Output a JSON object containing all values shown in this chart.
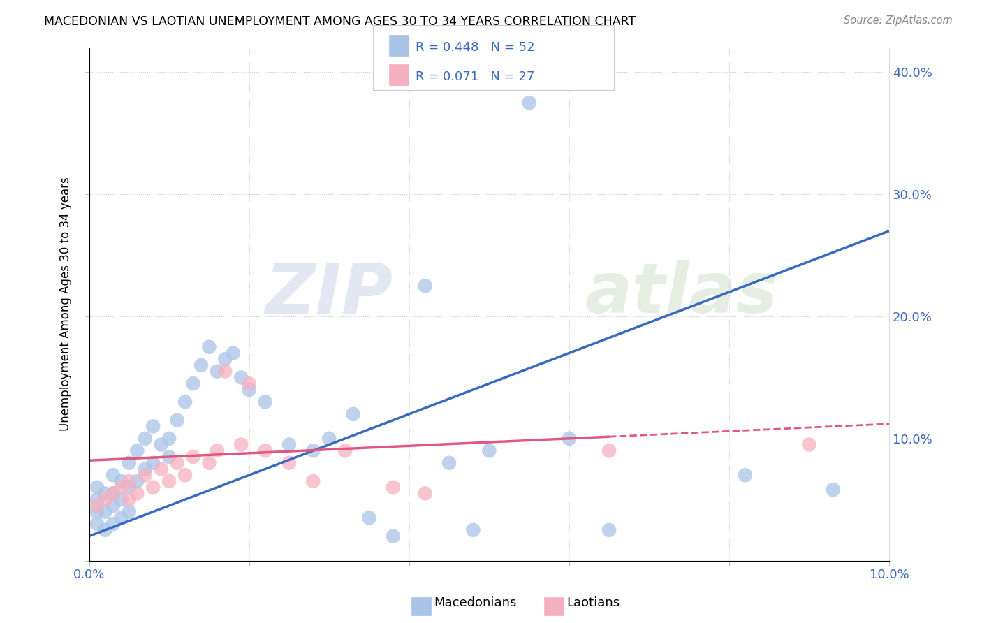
{
  "title": "MACEDONIAN VS LAOTIAN UNEMPLOYMENT AMONG AGES 30 TO 34 YEARS CORRELATION CHART",
  "source": "Source: ZipAtlas.com",
  "ylabel": "Unemployment Among Ages 30 to 34 years",
  "xlim": [
    0.0,
    0.1
  ],
  "ylim": [
    0.0,
    0.42
  ],
  "x_ticks": [
    0.0,
    0.02,
    0.04,
    0.06,
    0.08,
    0.1
  ],
  "x_tick_labels": [
    "0.0%",
    "",
    "",
    "",
    "",
    "10.0%"
  ],
  "y_ticks": [
    0.0,
    0.1,
    0.2,
    0.3,
    0.4
  ],
  "y_tick_labels": [
    "",
    "10.0%",
    "20.0%",
    "30.0%",
    "40.0%"
  ],
  "mac_color": "#aac4e8",
  "lao_color": "#f5b0c0",
  "mac_line_color": "#3a6abf",
  "lao_line_color": "#e05880",
  "watermark_zip": "ZIP",
  "watermark_atlas": "atlas",
  "mac_x": [
    0.001,
    0.001,
    0.001,
    0.001,
    0.002,
    0.002,
    0.002,
    0.003,
    0.003,
    0.003,
    0.003,
    0.004,
    0.004,
    0.004,
    0.005,
    0.005,
    0.005,
    0.006,
    0.006,
    0.007,
    0.007,
    0.008,
    0.008,
    0.009,
    0.01,
    0.01,
    0.011,
    0.012,
    0.013,
    0.014,
    0.015,
    0.016,
    0.017,
    0.018,
    0.019,
    0.02,
    0.022,
    0.025,
    0.028,
    0.03,
    0.033,
    0.035,
    0.038,
    0.042,
    0.045,
    0.048,
    0.05,
    0.055,
    0.06,
    0.065,
    0.082,
    0.093
  ],
  "mac_y": [
    0.03,
    0.04,
    0.05,
    0.06,
    0.025,
    0.04,
    0.055,
    0.03,
    0.045,
    0.055,
    0.07,
    0.035,
    0.05,
    0.065,
    0.04,
    0.06,
    0.08,
    0.065,
    0.09,
    0.075,
    0.1,
    0.08,
    0.11,
    0.095,
    0.085,
    0.1,
    0.115,
    0.13,
    0.145,
    0.16,
    0.175,
    0.155,
    0.165,
    0.17,
    0.15,
    0.14,
    0.13,
    0.095,
    0.09,
    0.1,
    0.12,
    0.035,
    0.02,
    0.225,
    0.08,
    0.025,
    0.09,
    0.375,
    0.1,
    0.025,
    0.07,
    0.058
  ],
  "lao_x": [
    0.001,
    0.002,
    0.003,
    0.004,
    0.005,
    0.005,
    0.006,
    0.007,
    0.008,
    0.009,
    0.01,
    0.011,
    0.012,
    0.013,
    0.015,
    0.016,
    0.017,
    0.019,
    0.02,
    0.022,
    0.025,
    0.028,
    0.032,
    0.038,
    0.042,
    0.065,
    0.09
  ],
  "lao_y": [
    0.045,
    0.05,
    0.055,
    0.06,
    0.05,
    0.065,
    0.055,
    0.07,
    0.06,
    0.075,
    0.065,
    0.08,
    0.07,
    0.085,
    0.08,
    0.09,
    0.155,
    0.095,
    0.145,
    0.09,
    0.08,
    0.065,
    0.09,
    0.06,
    0.055,
    0.09,
    0.095
  ],
  "mac_line_x0": 0.0,
  "mac_line_y0": 0.02,
  "mac_line_x1": 0.1,
  "mac_line_y1": 0.27,
  "lao_line_x0": 0.0,
  "lao_line_y0": 0.082,
  "lao_line_x1": 0.1,
  "lao_line_y1": 0.112
}
